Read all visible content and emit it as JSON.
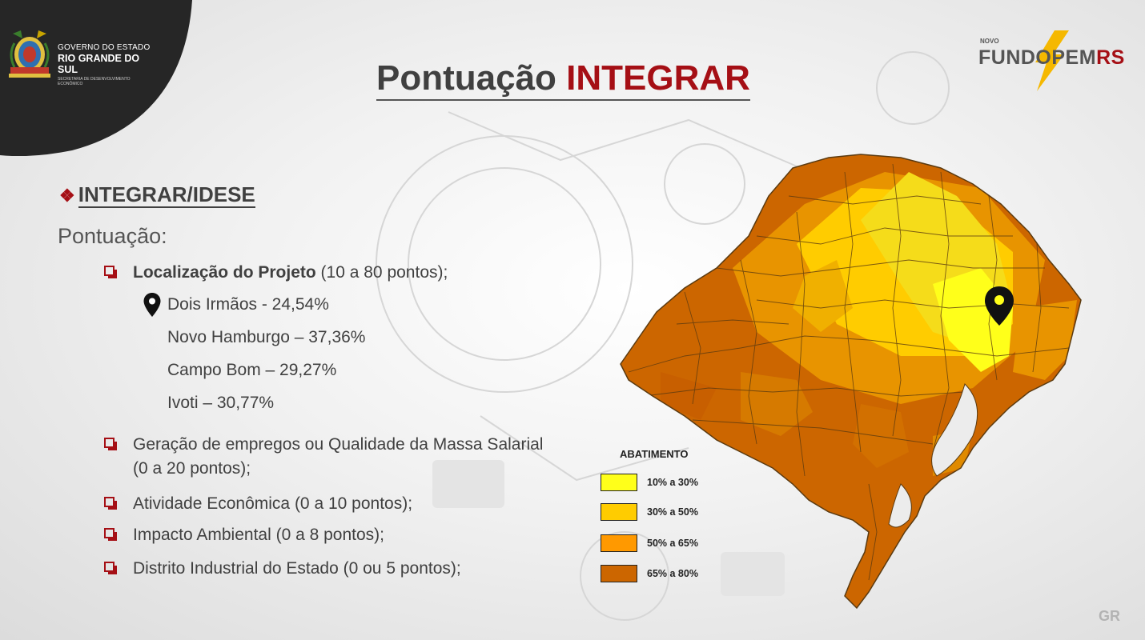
{
  "header": {
    "gov_line1": "GOVERNO DO ESTADO",
    "gov_line2": "RIO GRANDE DO SUL",
    "gov_line3": "SECRETARIA DE DESENVOLVIMENTO ECONÔMICO",
    "title_main": "Pontuação ",
    "title_highlight": "INTEGRAR",
    "brand_novo": "NOVO",
    "brand_name": "FUNDOPEM",
    "brand_suffix": "RS"
  },
  "content": {
    "section_symbol": "❖",
    "section_title": "INTEGRAR/IDESE",
    "pontuacao_label": "Pontuação:",
    "item1_bold": "Localização do Projeto",
    "item1_rest": " (10 a 80 pontos);",
    "cities": [
      "Dois Irmãos - 24,54%",
      "Novo Hamburgo – 37,36%",
      "Campo Bom – 29,27%",
      "Ivoti – 30,77%"
    ],
    "item2_line1": "Geração de empregos ou Qualidade da Massa Salarial",
    "item2_line2": "(0 a 20 pontos);",
    "item3": "Atividade Econômica (0 a 10 pontos);",
    "item4": "Impacto Ambiental (0 a 8 pontos);",
    "item5": "Distrito Industrial do Estado (0 ou 5 pontos);"
  },
  "legend": {
    "title": "ABATIMENTO",
    "items": [
      {
        "label": "10% a 30%",
        "color": "#ffff1a"
      },
      {
        "label": "30% a 50%",
        "color": "#ffcc00"
      },
      {
        "label": "50% a 65%",
        "color": "#ff9900"
      },
      {
        "label": "65% a 80%",
        "color": "#cc6600"
      }
    ]
  },
  "colors": {
    "accent": "#a50f15",
    "text": "#404040",
    "map_border": "#5a3a10"
  },
  "icons": {
    "section_bullet": "diamond-cluster-icon",
    "checkbox": "checkbox-bullet-icon",
    "location": "map-pin-icon"
  },
  "footer": {
    "mark": "GR"
  }
}
